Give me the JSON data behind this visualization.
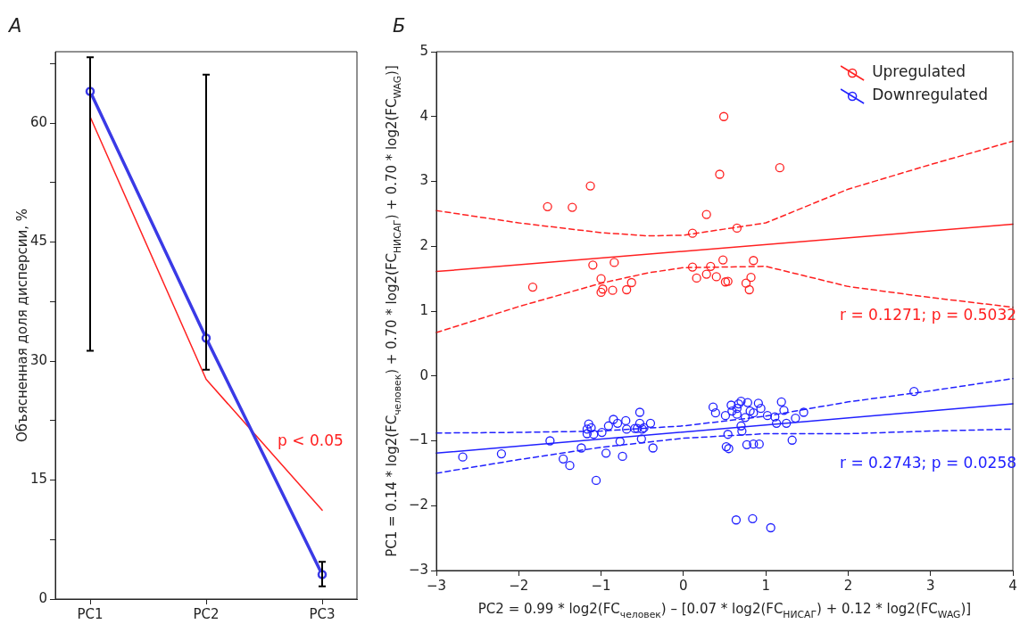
{
  "chart_data": [
    {
      "type": "line",
      "title": "А",
      "categories": [
        "PC1",
        "PC2",
        "PC3"
      ],
      "ylabel": "Объясненная доля дисперсии, %",
      "ylim": [
        0,
        69
      ],
      "yticks": [
        0,
        {
          "value": 7.5,
          "label": null
        },
        15,
        {
          "value": 22.5,
          "label": null
        },
        30,
        {
          "value": 37.5,
          "label": null
        },
        45,
        {
          "value": 52.5,
          "label": null
        },
        60,
        {
          "value": 67.5,
          "label": null
        }
      ],
      "grid": false,
      "legend": false,
      "annotations": [
        "p < 0.05"
      ],
      "series": [
        {
          "color": "#3a3ae6",
          "values": [
            64.0,
            32.9,
            3.1
          ],
          "errors": [
            [
              31.3,
              68.3
            ],
            [
              28.9,
              66.1
            ],
            [
              1.6,
              4.7
            ]
          ],
          "marker": "circle"
        },
        {
          "color": "#ff2020",
          "values": [
            60.8,
            27.7,
            11.2
          ],
          "marker": "none"
        }
      ]
    },
    {
      "type": "scatter",
      "title": "Б",
      "xlabel": "PC2 = 0.99 * log2(FC$_{человек}$) – [0.07 * log2(FC$_{НИСАГ}$) + 0.12 * log2(FC$_{WAG}$)]",
      "ylabel": "PC1 = 0.14 * log2(FC$_{человек}$) + 0.70 * log2(FC$_{НИСАГ}$) + 0.70 * log2(FC$_{WAG}$)]",
      "xlim": [
        -3,
        4
      ],
      "xticks": [
        -3,
        -2,
        -1,
        0,
        1,
        2,
        3,
        4
      ],
      "ylim": [
        -3,
        5
      ],
      "yticks": [
        -3,
        -2,
        -1,
        0,
        1,
        2,
        3,
        4,
        5
      ],
      "grid": false,
      "legend": "top right",
      "annotations": [
        "r = 0.1271; p = 0.5032",
        "r = 0.2743; p = 0.0258"
      ],
      "series": [
        {
          "name": "Upregulated",
          "type": "scatter",
          "color": "#ff2020",
          "marker": "circle",
          "x": [
            0.49,
            0.44,
            1.17,
            -1.13,
            -1.65,
            -1.35,
            0.28,
            0.11,
            0.65,
            -1.1,
            -0.84,
            -1.0,
            -0.98,
            -1.0,
            -0.86,
            -0.69,
            -0.63,
            -1.83,
            0.11,
            0.16,
            0.28,
            0.33,
            0.4,
            0.48,
            0.51,
            0.54,
            0.76,
            0.82,
            0.8,
            0.85
          ],
          "values": [
            4.0,
            3.11,
            3.21,
            2.93,
            2.61,
            2.6,
            2.49,
            2.2,
            2.28,
            1.71,
            1.75,
            1.5,
            1.34,
            1.29,
            1.32,
            1.33,
            1.44,
            1.37,
            1.68,
            1.51,
            1.57,
            1.69,
            1.53,
            1.79,
            1.45,
            1.46,
            1.43,
            1.52,
            1.33,
            1.78
          ]
        },
        {
          "type": "line",
          "color": "#ff2020",
          "marker": "none",
          "line_style": "solid",
          "x": [
            -3,
            4
          ],
          "values": [
            1.61,
            2.34
          ]
        },
        {
          "type": "line",
          "color": "#ff2020",
          "marker": "none",
          "line_style": "dashed",
          "x": [
            -3,
            -2,
            -1,
            -0.43,
            0,
            1,
            2,
            3,
            4
          ],
          "values": [
            2.55,
            2.36,
            2.21,
            2.16,
            2.17,
            2.36,
            2.88,
            3.26,
            3.62
          ]
        },
        {
          "type": "line",
          "color": "#ff2020",
          "marker": "none",
          "line_style": "dashed",
          "x": [
            -3,
            -2,
            -1,
            -0.43,
            0,
            1,
            2,
            3,
            4
          ],
          "values": [
            0.67,
            1.07,
            1.43,
            1.59,
            1.67,
            1.69,
            1.38,
            1.21,
            1.06
          ]
        },
        {
          "name": "Downregulated",
          "type": "scatter",
          "color": "#2020ff",
          "marker": "circle",
          "x": [
            -2.68,
            -2.21,
            -1.62,
            -1.46,
            -1.38,
            -1.24,
            -1.06,
            -1.15,
            -1.17,
            -1.17,
            -1.12,
            -1.09,
            -0.99,
            -0.94,
            -0.91,
            -0.85,
            -0.8,
            -0.77,
            -0.74,
            -0.7,
            -0.69,
            -0.59,
            -0.56,
            -0.53,
            -0.53,
            -0.51,
            -0.5,
            -0.48,
            -0.4,
            -0.37,
            0.36,
            0.39,
            0.51,
            0.54,
            0.52,
            0.55,
            0.58,
            0.59,
            0.65,
            0.65,
            0.67,
            0.7,
            0.7,
            0.71,
            0.75,
            0.77,
            0.78,
            0.81,
            0.85,
            0.85,
            0.91,
            0.92,
            0.94,
            1.02,
            1.11,
            1.13,
            1.19,
            1.22,
            1.25,
            1.32,
            1.36,
            1.46,
            2.8,
            0.64,
            0.84,
            1.06
          ],
          "values": [
            -1.25,
            -1.2,
            -1.0,
            -1.28,
            -1.38,
            -1.11,
            -1.61,
            -0.74,
            -0.82,
            -0.89,
            -0.8,
            -0.9,
            -0.87,
            -1.19,
            -0.77,
            -0.67,
            -0.73,
            -1.01,
            -1.24,
            -0.69,
            -0.82,
            -0.81,
            -0.81,
            -0.56,
            -0.73,
            -0.97,
            -0.82,
            -0.8,
            -0.73,
            -1.11,
            -0.48,
            -0.57,
            -0.61,
            -0.9,
            -1.09,
            -1.12,
            -0.45,
            -0.54,
            -0.5,
            -0.59,
            -0.43,
            -0.39,
            -0.77,
            -0.85,
            -0.64,
            -1.06,
            -0.41,
            -0.54,
            -0.57,
            -1.05,
            -0.42,
            -1.05,
            -0.5,
            -0.61,
            -0.63,
            -0.73,
            -0.4,
            -0.53,
            -0.73,
            -0.99,
            -0.65,
            -0.56,
            -0.24,
            -2.22,
            -2.2,
            -2.34
          ]
        },
        {
          "type": "line",
          "color": "#2020ff",
          "marker": "none",
          "line_style": "solid",
          "x": [
            -3,
            4
          ],
          "values": [
            -1.19,
            -0.43
          ]
        },
        {
          "type": "line",
          "color": "#2020ff",
          "marker": "none",
          "line_style": "dashed",
          "x": [
            -3,
            -2,
            -1,
            0,
            1,
            2,
            3,
            4
          ],
          "values": [
            -0.88,
            -0.87,
            -0.85,
            -0.77,
            -0.62,
            -0.4,
            -0.23,
            -0.04
          ]
        },
        {
          "type": "line",
          "color": "#2020ff",
          "marker": "none",
          "line_style": "dashed",
          "x": [
            -3,
            -2,
            -1,
            0,
            1,
            2,
            3,
            4
          ],
          "values": [
            -1.5,
            -1.29,
            -1.1,
            -0.96,
            -0.89,
            -0.89,
            -0.85,
            -0.82
          ]
        }
      ]
    }
  ]
}
